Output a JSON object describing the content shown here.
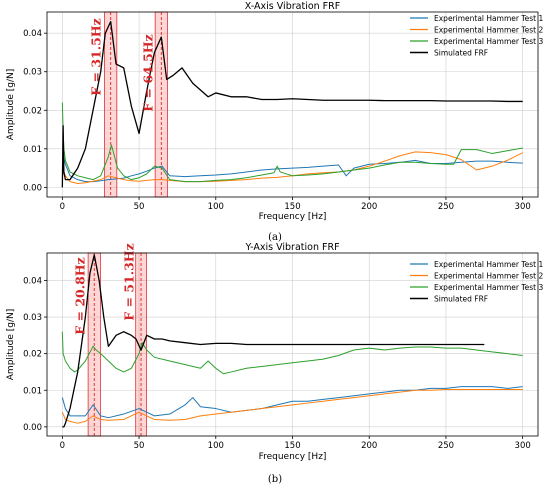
{
  "chart_data": [
    {
      "type": "line",
      "title": "X-Axis Vibration FRF",
      "xlabel": "Frequency [Hz]",
      "ylabel": "Amplitude [g/N]",
      "xlim": [
        -10,
        310
      ],
      "ylim": [
        -0.0025,
        0.0455
      ],
      "xticks": [
        0,
        50,
        100,
        150,
        200,
        250,
        300
      ],
      "yticks": [
        0.0,
        0.01,
        0.02,
        0.03,
        0.04
      ],
      "ytick_labels": [
        "0.00",
        "0.01",
        "0.02",
        "0.03",
        "0.04"
      ],
      "grid": true,
      "legend_position": "top-right",
      "caption": "(a)",
      "annotations": [
        {
          "text": "F = 31.5Hz",
          "x": 31.5,
          "band": [
            27.5,
            35.5
          ]
        },
        {
          "text": "F = 64.5Hz",
          "x": 64.5,
          "band": [
            60.5,
            68.5
          ]
        }
      ],
      "series": [
        {
          "name": "Experimental Hammer Test 1",
          "color": "#1f77b4",
          "x": [
            0,
            1,
            2,
            5,
            10,
            15,
            20,
            25,
            30,
            35,
            40,
            45,
            50,
            55,
            60,
            65,
            70,
            80,
            90,
            100,
            110,
            120,
            130,
            140,
            150,
            160,
            170,
            180,
            185,
            190,
            200,
            210,
            220,
            230,
            240,
            250,
            260,
            270,
            280,
            290,
            300
          ],
          "y": [
            0.004,
            0.0075,
            0.006,
            0.003,
            0.002,
            0.0015,
            0.0015,
            0.0017,
            0.002,
            0.0022,
            0.0024,
            0.003,
            0.0035,
            0.0042,
            0.005,
            0.0055,
            0.003,
            0.0028,
            0.003,
            0.0032,
            0.0035,
            0.004,
            0.0045,
            0.0048,
            0.005,
            0.0052,
            0.0055,
            0.0058,
            0.003,
            0.005,
            0.006,
            0.0062,
            0.0065,
            0.007,
            0.0062,
            0.0062,
            0.0065,
            0.0068,
            0.0068,
            0.0065,
            0.0063
          ]
        },
        {
          "name": "Experimental Hammer Test 2",
          "color": "#ff7f0e",
          "x": [
            0,
            1,
            2,
            5,
            10,
            15,
            20,
            25,
            30,
            35,
            40,
            45,
            50,
            55,
            60,
            65,
            70,
            80,
            90,
            100,
            110,
            120,
            130,
            140,
            150,
            160,
            170,
            180,
            190,
            200,
            210,
            220,
            230,
            240,
            250,
            260,
            270,
            280,
            290,
            300
          ],
          "y": [
            0.003,
            0.004,
            0.003,
            0.0015,
            0.001,
            0.0012,
            0.0016,
            0.002,
            0.003,
            0.0025,
            0.002,
            0.0017,
            0.0016,
            0.0018,
            0.002,
            0.002,
            0.0018,
            0.0015,
            0.0015,
            0.0016,
            0.0018,
            0.002,
            0.0024,
            0.0026,
            0.003,
            0.0035,
            0.0038,
            0.004,
            0.0045,
            0.0055,
            0.0068,
            0.0082,
            0.0092,
            0.009,
            0.0085,
            0.0072,
            0.0045,
            0.0055,
            0.007,
            0.009
          ]
        },
        {
          "name": "Experimental Hammer Test 3",
          "color": "#2ca02c",
          "x": [
            0,
            0.5,
            1,
            2,
            5,
            10,
            15,
            20,
            25,
            30,
            32,
            34,
            36,
            40,
            45,
            50,
            55,
            60,
            65,
            70,
            80,
            90,
            100,
            110,
            120,
            130,
            138,
            140,
            142,
            150,
            160,
            170,
            180,
            190,
            200,
            210,
            220,
            230,
            240,
            250,
            255,
            260,
            270,
            280,
            290,
            300
          ],
          "y": [
            0.022,
            0.015,
            0.01,
            0.007,
            0.004,
            0.003,
            0.0025,
            0.002,
            0.003,
            0.008,
            0.011,
            0.008,
            0.005,
            0.003,
            0.002,
            0.0025,
            0.0035,
            0.0055,
            0.005,
            0.002,
            0.0015,
            0.0015,
            0.0018,
            0.002,
            0.0025,
            0.0032,
            0.0038,
            0.0055,
            0.004,
            0.003,
            0.0032,
            0.0035,
            0.004,
            0.0045,
            0.005,
            0.0058,
            0.0065,
            0.0065,
            0.0062,
            0.006,
            0.006,
            0.0098,
            0.0098,
            0.0088,
            0.0095,
            0.0102
          ]
        },
        {
          "name": "Simulated FRF",
          "color": "#000000",
          "x": [
            0,
            0.5,
            1,
            2,
            5,
            10,
            15,
            20,
            25,
            28,
            31.5,
            35,
            40,
            45,
            50,
            55,
            60,
            64.5,
            68,
            72,
            78,
            85,
            95,
            100,
            110,
            120,
            130,
            140,
            150,
            160,
            170,
            180,
            190,
            200,
            210,
            220,
            230,
            240,
            250,
            260,
            270,
            280,
            290,
            300
          ],
          "y": [
            0.0,
            0.016,
            0.004,
            0.002,
            0.002,
            0.005,
            0.01,
            0.02,
            0.03,
            0.04,
            0.043,
            0.032,
            0.031,
            0.021,
            0.014,
            0.025,
            0.035,
            0.039,
            0.028,
            0.029,
            0.031,
            0.027,
            0.0235,
            0.0245,
            0.0235,
            0.0235,
            0.0228,
            0.0228,
            0.023,
            0.0228,
            0.0226,
            0.0226,
            0.0226,
            0.0226,
            0.0225,
            0.0225,
            0.0225,
            0.0225,
            0.0224,
            0.0224,
            0.0224,
            0.0224,
            0.0223,
            0.0223
          ]
        }
      ]
    },
    {
      "type": "line",
      "title": "Y-Axis Vibration FRF",
      "xlabel": "Frequency [Hz]",
      "ylabel": "Amplitude [g/N]",
      "xlim": [
        -10,
        310
      ],
      "ylim": [
        -0.0025,
        0.0475
      ],
      "xticks": [
        0,
        50,
        100,
        150,
        200,
        250,
        300
      ],
      "yticks": [
        0.0,
        0.01,
        0.02,
        0.03,
        0.04
      ],
      "ytick_labels": [
        "0.00",
        "0.01",
        "0.02",
        "0.03",
        "0.04"
      ],
      "grid": true,
      "legend_position": "top-right",
      "caption": "(b)",
      "annotations": [
        {
          "text": "F = 20.8Hz",
          "x": 20.8,
          "band": [
            16.8,
            24.8
          ]
        },
        {
          "text": "F = 51.3Hz",
          "x": 51.3,
          "band": [
            47.8,
            54.8
          ]
        }
      ],
      "series": [
        {
          "name": "Experimental Hammer Test 1",
          "color": "#1f77b4",
          "x": [
            0,
            2,
            5,
            10,
            15,
            20,
            25,
            30,
            40,
            50,
            55,
            60,
            70,
            80,
            85,
            90,
            100,
            110,
            120,
            130,
            140,
            150,
            160,
            170,
            180,
            190,
            200,
            210,
            220,
            230,
            240,
            250,
            260,
            270,
            280,
            290,
            300
          ],
          "y": [
            0.008,
            0.005,
            0.003,
            0.003,
            0.003,
            0.006,
            0.003,
            0.0025,
            0.0035,
            0.005,
            0.004,
            0.003,
            0.0035,
            0.006,
            0.008,
            0.0055,
            0.005,
            0.004,
            0.0045,
            0.005,
            0.006,
            0.007,
            0.007,
            0.0075,
            0.008,
            0.0085,
            0.009,
            0.0095,
            0.01,
            0.01,
            0.0105,
            0.0105,
            0.011,
            0.011,
            0.011,
            0.0105,
            0.011
          ]
        },
        {
          "name": "Experimental Hammer Test 2",
          "color": "#ff7f0e",
          "x": [
            0,
            2,
            5,
            10,
            15,
            20,
            25,
            30,
            40,
            50,
            60,
            70,
            80,
            90,
            100,
            110,
            120,
            130,
            140,
            150,
            160,
            170,
            180,
            190,
            200,
            210,
            220,
            230,
            240,
            250,
            260,
            270,
            280,
            290,
            300
          ],
          "y": [
            0.004,
            0.002,
            0.0015,
            0.001,
            0.0015,
            0.003,
            0.002,
            0.0018,
            0.002,
            0.004,
            0.002,
            0.0018,
            0.002,
            0.003,
            0.0035,
            0.004,
            0.0045,
            0.005,
            0.0055,
            0.006,
            0.0065,
            0.007,
            0.0075,
            0.008,
            0.0085,
            0.009,
            0.0095,
            0.01,
            0.01,
            0.0102,
            0.0102,
            0.0102,
            0.0102,
            0.0102,
            0.0102
          ]
        },
        {
          "name": "Experimental Hammer Test 3",
          "color": "#2ca02c",
          "x": [
            0,
            0.5,
            2,
            5,
            8,
            10,
            15,
            20,
            22,
            25,
            30,
            35,
            40,
            45,
            50,
            52,
            55,
            60,
            70,
            80,
            90,
            95,
            100,
            105,
            110,
            120,
            130,
            140,
            150,
            160,
            170,
            180,
            190,
            200,
            210,
            220,
            230,
            240,
            250,
            260,
            270,
            280,
            290,
            300
          ],
          "y": [
            0.026,
            0.02,
            0.018,
            0.016,
            0.015,
            0.0155,
            0.018,
            0.022,
            0.021,
            0.02,
            0.018,
            0.016,
            0.015,
            0.016,
            0.02,
            0.023,
            0.021,
            0.019,
            0.018,
            0.017,
            0.016,
            0.018,
            0.016,
            0.0145,
            0.015,
            0.016,
            0.0165,
            0.017,
            0.0175,
            0.018,
            0.0185,
            0.0195,
            0.021,
            0.0215,
            0.021,
            0.0215,
            0.0218,
            0.0218,
            0.0215,
            0.0215,
            0.021,
            0.0205,
            0.02,
            0.0195
          ]
        },
        {
          "name": "Simulated FRF",
          "color": "#000000",
          "x": [
            0,
            1,
            2,
            5,
            10,
            15,
            18,
            20.8,
            24,
            27,
            30,
            35,
            40,
            45,
            48,
            51.3,
            55,
            60,
            65,
            70,
            80,
            90,
            100,
            110,
            120,
            130,
            140,
            150,
            160,
            170,
            180,
            190,
            200,
            210,
            220,
            230,
            240,
            250,
            260,
            270,
            275
          ],
          "y": [
            0.0,
            0.0,
            0.001,
            0.005,
            0.015,
            0.03,
            0.042,
            0.047,
            0.04,
            0.03,
            0.022,
            0.025,
            0.026,
            0.025,
            0.024,
            0.021,
            0.025,
            0.024,
            0.024,
            0.0235,
            0.023,
            0.0225,
            0.0228,
            0.0228,
            0.0225,
            0.0225,
            0.0225,
            0.0225,
            0.0225,
            0.0225,
            0.0225,
            0.0225,
            0.0225,
            0.0225,
            0.0225,
            0.0225,
            0.0225,
            0.0225,
            0.0225,
            0.0225,
            0.0225
          ]
        }
      ]
    }
  ]
}
